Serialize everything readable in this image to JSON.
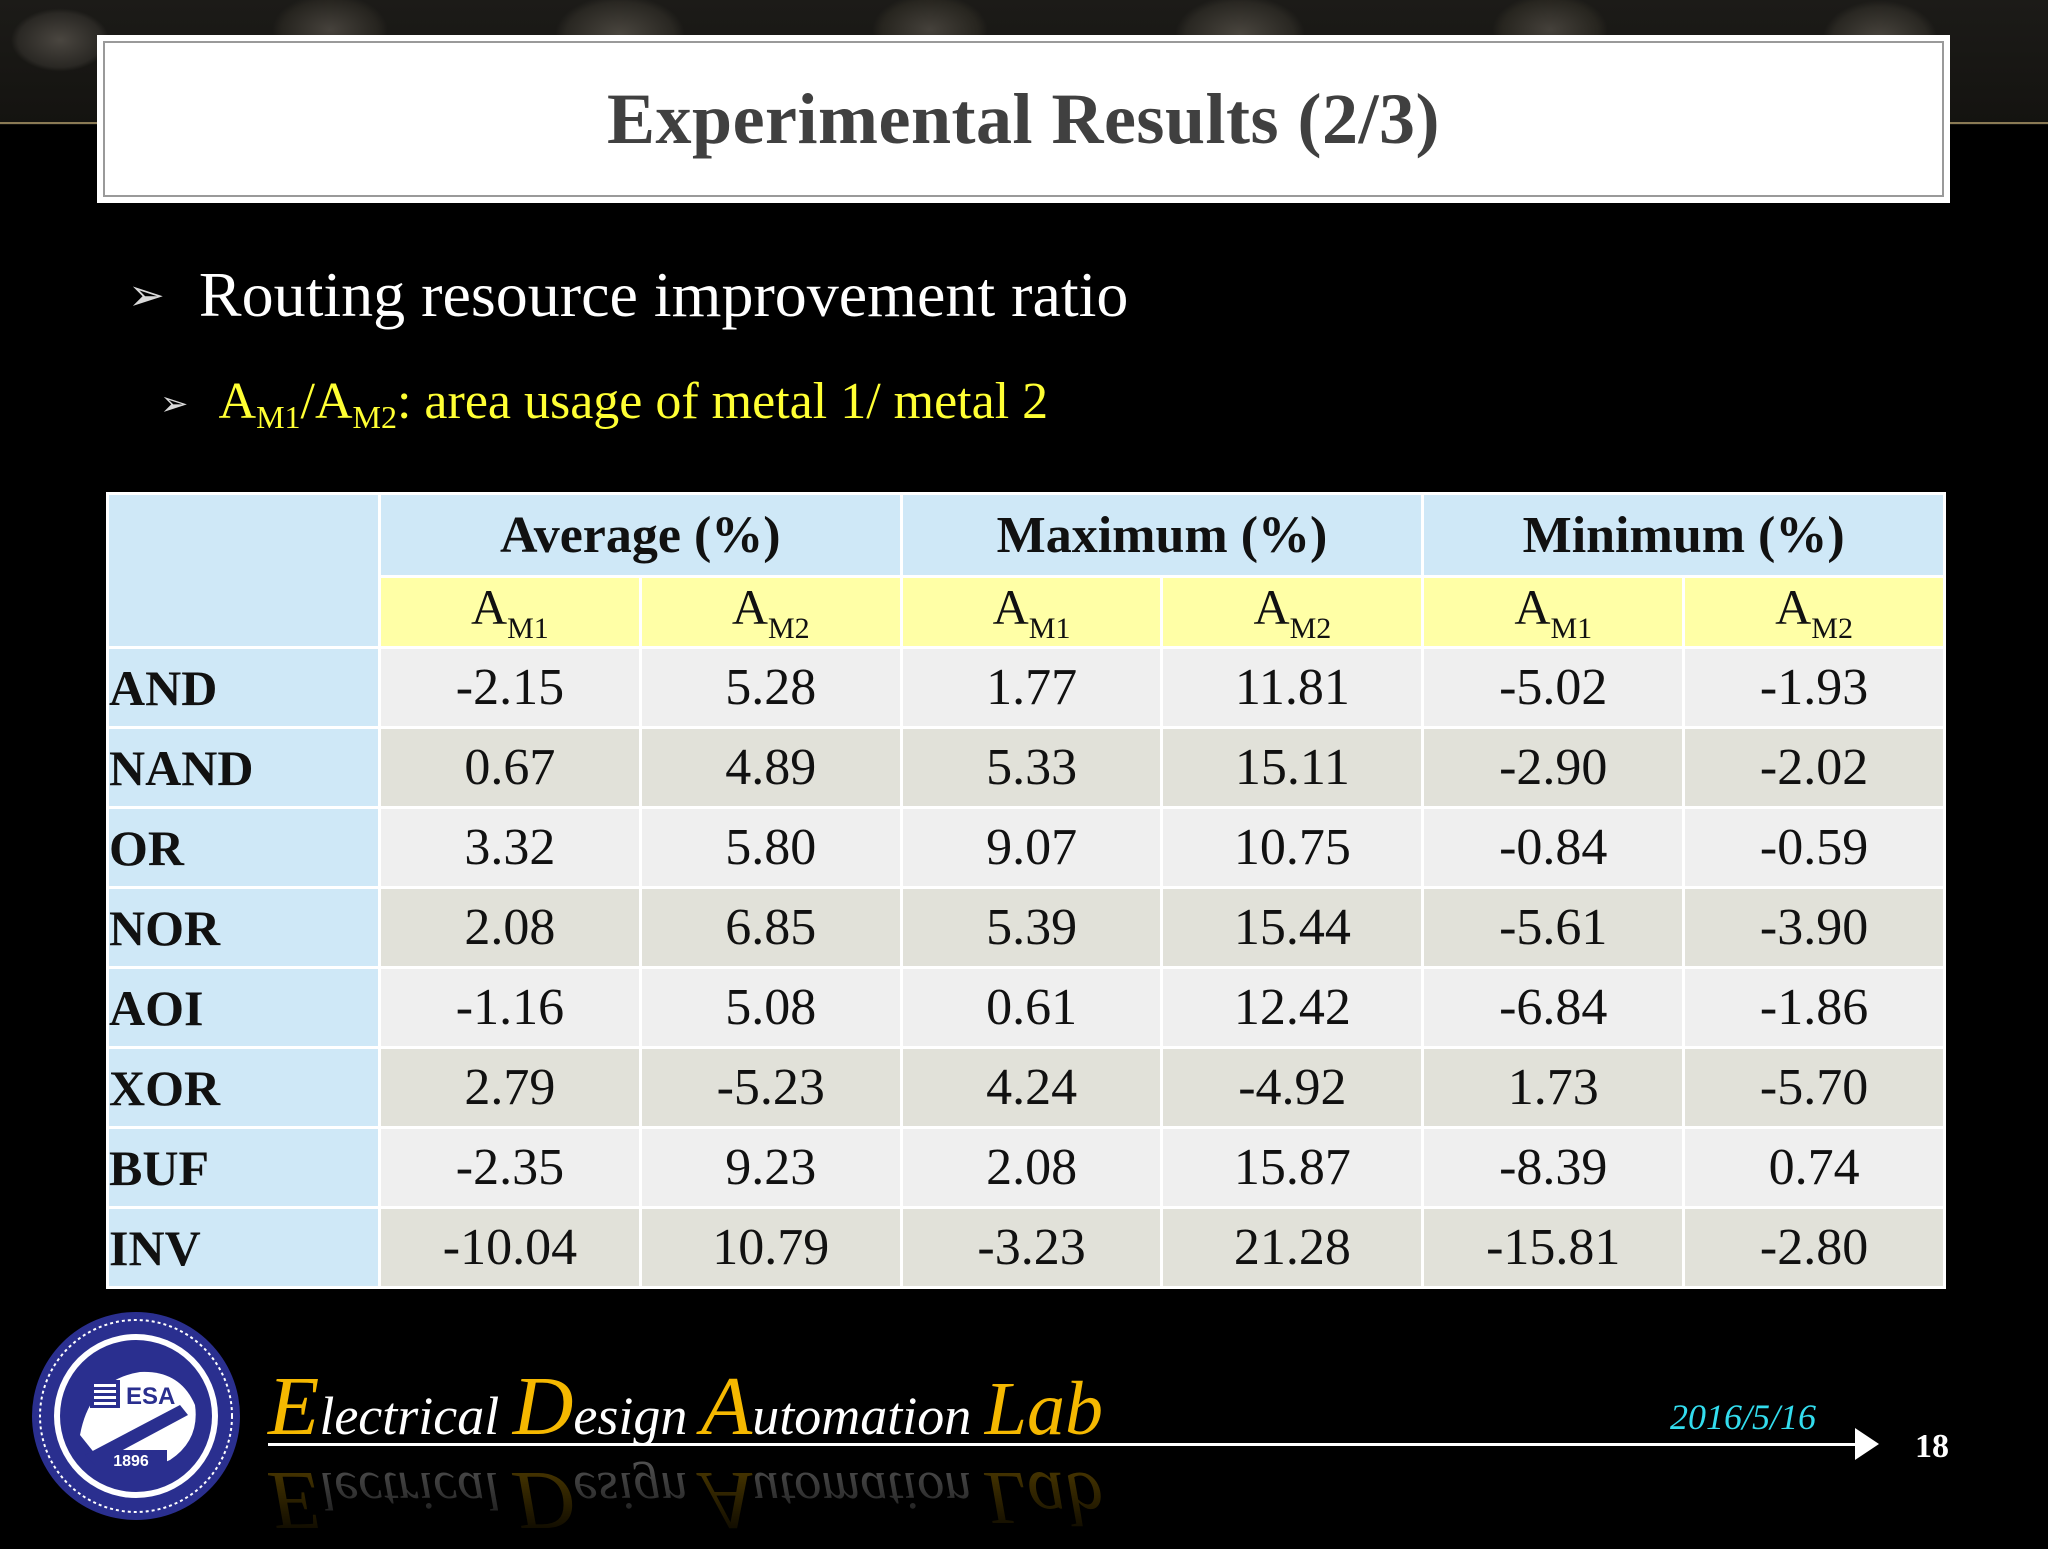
{
  "title": "Experimental Results (2/3)",
  "bullets": {
    "level1": "Routing resource improvement ratio",
    "level2": {
      "a": "A",
      "sub1": "M1",
      "slash": "/A",
      "sub2": "M2",
      "rest": ": area usage of metal 1/ metal 2"
    }
  },
  "table": {
    "groups": [
      "Average (%)",
      "Maximum (%)",
      "Minimum (%)"
    ],
    "subheaders": [
      {
        "base": "A",
        "sub": "M1"
      },
      {
        "base": "A",
        "sub": "M2"
      },
      {
        "base": "A",
        "sub": "M1"
      },
      {
        "base": "A",
        "sub": "M2"
      },
      {
        "base": "A",
        "sub": "M1"
      },
      {
        "base": "A",
        "sub": "M2"
      }
    ],
    "rows": [
      {
        "label": "AND",
        "values": [
          "-2.15",
          "5.28",
          "1.77",
          "11.81",
          "-5.02",
          "-1.93"
        ]
      },
      {
        "label": "NAND",
        "values": [
          "0.67",
          "4.89",
          "5.33",
          "15.11",
          "-2.90",
          "-2.02"
        ]
      },
      {
        "label": "OR",
        "values": [
          "3.32",
          "5.80",
          "9.07",
          "10.75",
          "-0.84",
          "-0.59"
        ]
      },
      {
        "label": "NOR",
        "values": [
          "2.08",
          "6.85",
          "5.39",
          "15.44",
          "-5.61",
          "-3.90"
        ]
      },
      {
        "label": "AOI",
        "values": [
          "-1.16",
          "5.08",
          "0.61",
          "12.42",
          "-6.84",
          "-1.86"
        ]
      },
      {
        "label": "XOR",
        "values": [
          "2.79",
          "-5.23",
          "4.24",
          "-4.92",
          "1.73",
          "-5.70"
        ]
      },
      {
        "label": "BUF",
        "values": [
          "-2.35",
          "9.23",
          "2.08",
          "15.87",
          "-8.39",
          "0.74"
        ]
      },
      {
        "label": "INV",
        "values": [
          "-10.04",
          "10.79",
          "-3.23",
          "21.28",
          "-15.81",
          "-2.80"
        ]
      }
    ]
  },
  "footer": {
    "lab": {
      "e": "E",
      "e_rest": "lectrical ",
      "d": "D",
      "d_rest": "esign ",
      "a": "A",
      "a_rest": "utomation ",
      "lab": "Lab"
    },
    "logo": {
      "letters": "ESA",
      "year": "1896"
    },
    "date": "2016/5/16",
    "page": "18"
  },
  "colors": {
    "background": "#000000",
    "table_header": "#cfe8f7",
    "table_subheader": "#ffffa6",
    "row_light": "#efefef",
    "row_dark": "#e1e1d9",
    "bullet2_text": "#ffff33",
    "lab_gold": "#f5b800",
    "date": "#33ddee"
  },
  "icons": {
    "bullet": "arrowhead-bullet-icon",
    "logo": "university-seal-icon"
  }
}
